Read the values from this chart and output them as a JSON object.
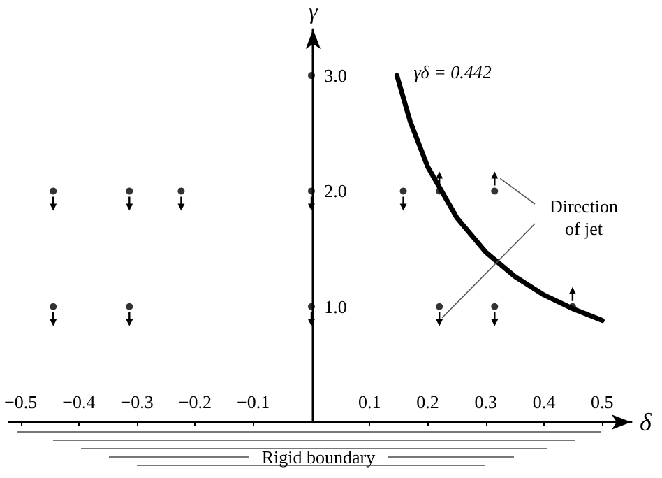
{
  "chart_data": {
    "type": "scatter",
    "xlabel": "δ",
    "ylabel": "γ",
    "xlim": [
      -0.52,
      0.55
    ],
    "ylim": [
      0,
      3.4
    ],
    "xticks": [
      {
        "value": -0.5,
        "label": "−0.5"
      },
      {
        "value": -0.4,
        "label": "−0.4"
      },
      {
        "value": -0.3,
        "label": "−0.3"
      },
      {
        "value": -0.2,
        "label": "−0.2"
      },
      {
        "value": -0.1,
        "label": "−0.1"
      },
      {
        "value": 0.1,
        "label": "0.1"
      },
      {
        "value": 0.2,
        "label": "0.2"
      },
      {
        "value": 0.3,
        "label": "0.3"
      },
      {
        "value": 0.4,
        "label": "0.4"
      },
      {
        "value": 0.5,
        "label": "0.5"
      }
    ],
    "yticks": [
      {
        "value": 1,
        "label": "1.0"
      },
      {
        "value": 2,
        "label": "2.0"
      },
      {
        "value": 3,
        "label": "3.0"
      }
    ],
    "series": [
      {
        "color": "#000000",
        "marker": "circle",
        "x": [
          -0.444,
          -0.313,
          -0.224,
          0,
          0.158,
          -0.444,
          -0.313,
          0,
          0.22,
          0.315
        ],
        "values": [
          2,
          2,
          2,
          2,
          2,
          1,
          1,
          1,
          1,
          1
        ]
      },
      {
        "color": "#000000",
        "marker": "circle",
        "x": [
          0.22,
          0.315,
          0.449
        ],
        "values": [
          2,
          2,
          1
        ]
      },
      {
        "color": "#000000",
        "marker": "circle",
        "x": [
          0
        ],
        "values": [
          3
        ]
      },
      {
        "type": "line",
        "color": "#000000",
        "marker": "none",
        "x": [
          0.147,
          0.17,
          0.2,
          0.25,
          0.3,
          0.35,
          0.4,
          0.45,
          0.5
        ],
        "values": [
          3.0,
          2.6,
          2.21,
          1.77,
          1.47,
          1.26,
          1.1,
          0.98,
          0.88
        ]
      }
    ],
    "grid": false,
    "annotations": [
      {
        "text": "γδ = 0.442",
        "x": 0.147,
        "y": 3.0
      },
      "Direction of jet",
      "Rigid boundary"
    ]
  }
}
